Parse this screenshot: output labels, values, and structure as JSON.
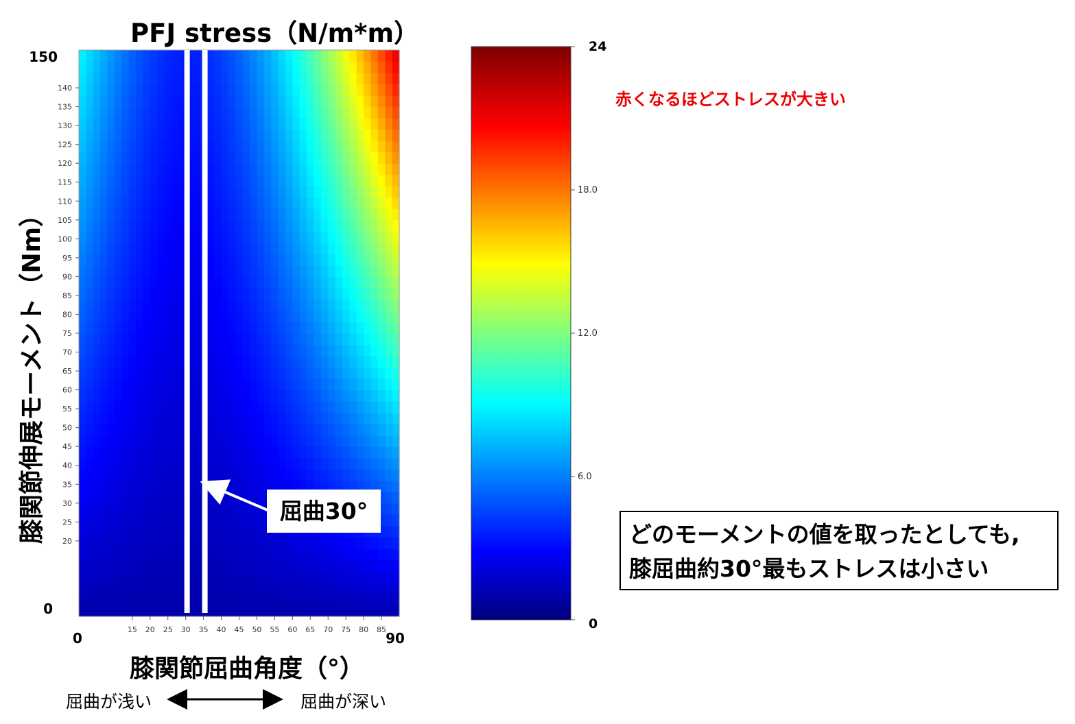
{
  "chart_data": {
    "type": "heatmap",
    "title": "PFJ stress（N/m*m）",
    "xlabel": "膝関節屈曲角度（°）",
    "ylabel": "膝関節伸展モーメント（Nm）",
    "x_range": [
      0,
      90
    ],
    "y_range": [
      0,
      150
    ],
    "x_end_labels": [
      "0",
      "90"
    ],
    "x_tick_labels": [
      "15",
      "20",
      "25",
      "30",
      "35",
      "40",
      "45",
      "50",
      "55",
      "60",
      "65",
      "70",
      "75",
      "80",
      "85"
    ],
    "y_end_labels": [
      "0",
      "150"
    ],
    "y_tick_labels": [
      "20",
      "25",
      "30",
      "35",
      "40",
      "45",
      "50",
      "55",
      "60",
      "65",
      "70",
      "75",
      "80",
      "85",
      "90",
      "95",
      "100",
      "105",
      "110",
      "115",
      "120",
      "125",
      "130",
      "135",
      "140"
    ],
    "colorbar": {
      "min": 0,
      "max": 24,
      "tick_labels": [
        "0",
        "6.0",
        "12.0",
        "18.0",
        "24"
      ],
      "tick_values": [
        0,
        6,
        12,
        18,
        24
      ],
      "colors": [
        "#00007f",
        "#0000ff",
        "#00ffff",
        "#ffff00",
        "#ff0000",
        "#7f0000"
      ]
    },
    "highlight_x": 30,
    "annotations": {
      "callout": "屈曲30°",
      "red_note": "赤くなるほどストレスが大きい",
      "conclusion_line1": "どのモーメントの値を取ったとしても,",
      "conclusion_line2": "膝屈曲約30°最もストレスは小さい",
      "hint_left": "屈曲が浅い",
      "hint_right": "屈曲が深い"
    }
  }
}
